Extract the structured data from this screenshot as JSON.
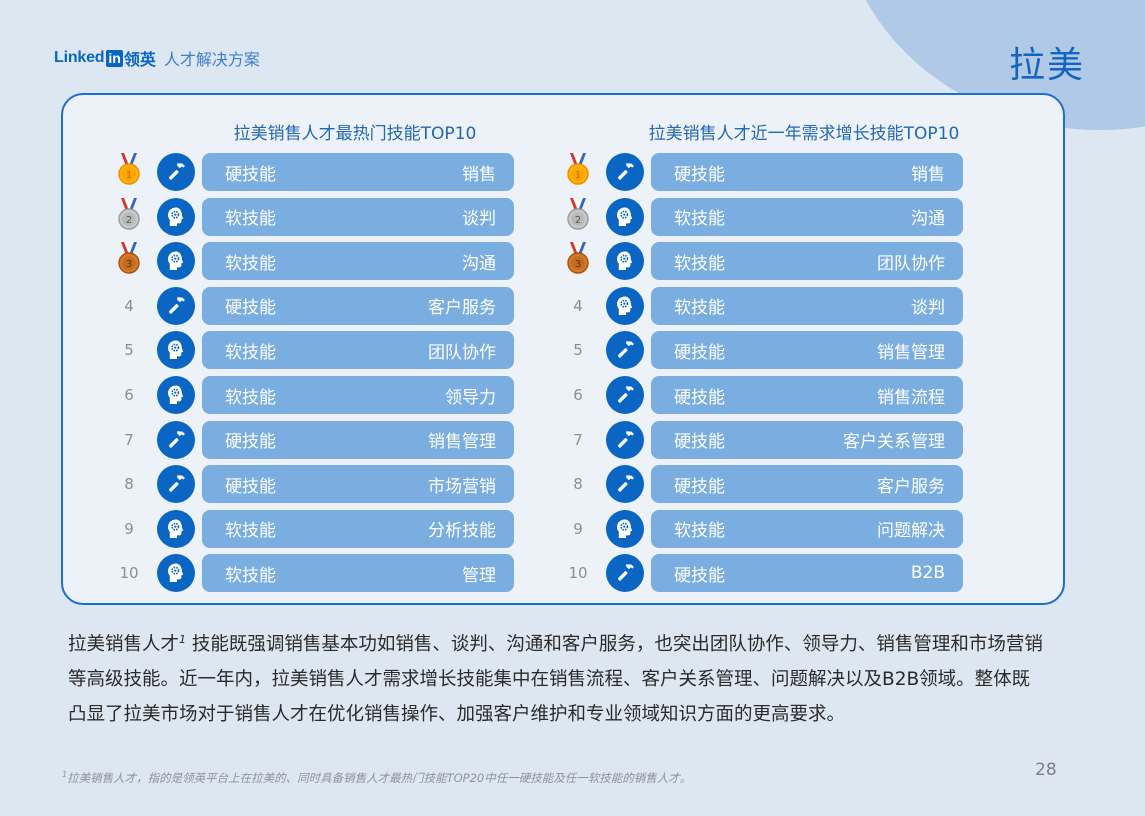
{
  "header": {
    "brand_word": "Linked",
    "brand_box": "in",
    "brand_cn": "领英",
    "brand_sub": "人才解决方案",
    "region_title": "拉美"
  },
  "colors": {
    "accent": "#0a66c2",
    "pill": "#7aaee0",
    "panel_bg": "#edf2f9",
    "panel_border": "#1d6fcc",
    "page_bg": "#dde7f1",
    "blob": "#afc9e6"
  },
  "left_list": {
    "title": "拉美销售人才最热门技能TOP10",
    "items": [
      {
        "rank": "1",
        "medal": "gold",
        "icon": "hammer-icon",
        "type": "硬技能",
        "skill": "销售"
      },
      {
        "rank": "2",
        "medal": "silver",
        "icon": "brain-gear-icon",
        "type": "软技能",
        "skill": "谈判"
      },
      {
        "rank": "3",
        "medal": "bronze",
        "icon": "brain-gear-icon",
        "type": "软技能",
        "skill": "沟通"
      },
      {
        "rank": "4",
        "medal": "",
        "icon": "hammer-icon",
        "type": "硬技能",
        "skill": "客户服务"
      },
      {
        "rank": "5",
        "medal": "",
        "icon": "brain-gear-icon",
        "type": "软技能",
        "skill": "团队协作"
      },
      {
        "rank": "6",
        "medal": "",
        "icon": "brain-gear-icon",
        "type": "软技能",
        "skill": "领导力"
      },
      {
        "rank": "7",
        "medal": "",
        "icon": "hammer-icon",
        "type": "硬技能",
        "skill": "销售管理"
      },
      {
        "rank": "8",
        "medal": "",
        "icon": "hammer-icon",
        "type": "硬技能",
        "skill": "市场营销"
      },
      {
        "rank": "9",
        "medal": "",
        "icon": "brain-gear-icon",
        "type": "软技能",
        "skill": "分析技能"
      },
      {
        "rank": "10",
        "medal": "",
        "icon": "brain-gear-icon",
        "type": "软技能",
        "skill": "管理"
      }
    ]
  },
  "right_list": {
    "title": "拉美销售人才近一年需求增长技能TOP10",
    "items": [
      {
        "rank": "1",
        "medal": "gold",
        "icon": "hammer-icon",
        "type": "硬技能",
        "skill": "销售"
      },
      {
        "rank": "2",
        "medal": "silver",
        "icon": "brain-gear-icon",
        "type": "软技能",
        "skill": "沟通"
      },
      {
        "rank": "3",
        "medal": "bronze",
        "icon": "brain-gear-icon",
        "type": "软技能",
        "skill": "团队协作"
      },
      {
        "rank": "4",
        "medal": "",
        "icon": "brain-gear-icon",
        "type": "软技能",
        "skill": "谈判"
      },
      {
        "rank": "5",
        "medal": "",
        "icon": "hammer-icon",
        "type": "硬技能",
        "skill": "销售管理"
      },
      {
        "rank": "6",
        "medal": "",
        "icon": "hammer-icon",
        "type": "硬技能",
        "skill": "销售流程"
      },
      {
        "rank": "7",
        "medal": "",
        "icon": "hammer-icon",
        "type": "硬技能",
        "skill": "客户关系管理"
      },
      {
        "rank": "8",
        "medal": "",
        "icon": "hammer-icon",
        "type": "硬技能",
        "skill": "客户服务"
      },
      {
        "rank": "9",
        "medal": "",
        "icon": "brain-gear-icon",
        "type": "软技能",
        "skill": "问题解决"
      },
      {
        "rank": "10",
        "medal": "",
        "icon": "hammer-icon",
        "type": "硬技能",
        "skill": "B2B"
      }
    ]
  },
  "summary": {
    "lead": "拉美销售人才",
    "sup": "1",
    "body": " 技能既强调销售基本功如销售、谈判、沟通和客户服务，也突出团队协作、领导力、销售管理和市场营销等高级技能。近一年内，拉美销售人才需求增长技能集中在销售流程、客户关系管理、问题解决以及B2B领域。整体既凸显了拉美市场对于销售人才在优化销售操作、加强客户维护和专业领域知识方面的更高要求。"
  },
  "footnote": {
    "sup": "1",
    "text": "拉美销售人才，指的是领英平台上在拉美的、同时具备销售人才最热门技能TOP20中任一硬技能及任一软技能的销售人才。"
  },
  "page_number": "28"
}
